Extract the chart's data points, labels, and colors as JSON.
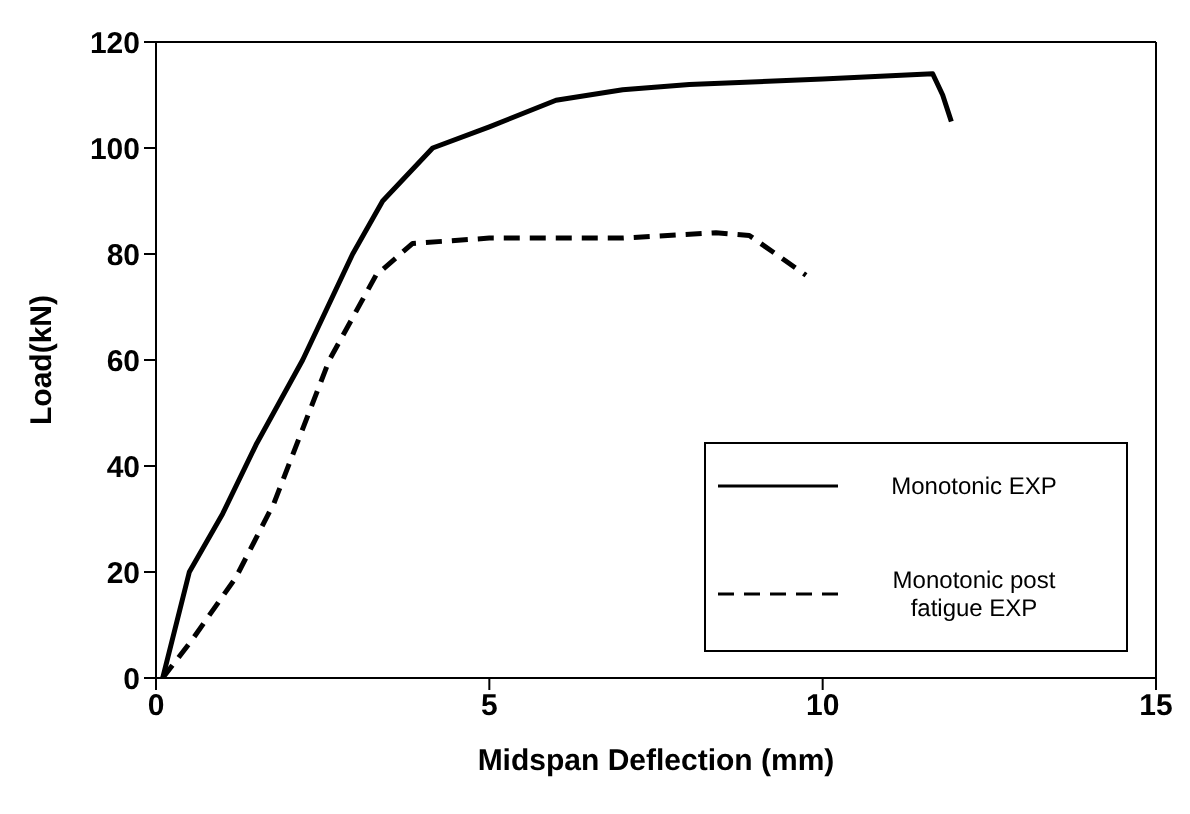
{
  "chart_data": {
    "type": "line",
    "xlabel": "Midspan Deflection (mm)",
    "ylabel": "Load(kN)",
    "xlim": [
      0,
      15
    ],
    "xticks": [
      0,
      5,
      10,
      15
    ],
    "ylim": [
      0,
      120
    ],
    "yticks": [
      0,
      20,
      40,
      60,
      80,
      100,
      120
    ],
    "legend": "bottom right",
    "marker": "none",
    "series": [
      {
        "name": "Monotonic EXP",
        "color": "#000000",
        "line_style": "solid",
        "x": [
          0.1,
          0.5,
          1,
          1.5,
          2.2,
          2.95,
          3.4,
          4.15,
          5,
          6,
          7,
          8,
          10,
          11.65,
          11.8,
          11.93
        ],
        "values": [
          0,
          20,
          31,
          44,
          60,
          80,
          90,
          100,
          104,
          109,
          111,
          112,
          113,
          114,
          110,
          105
        ]
      },
      {
        "name": "Monotonic post fatigue EXP",
        "color": "#000000",
        "line_style": "dashed",
        "x": [
          0.1,
          0.53,
          1.2,
          1.77,
          2.6,
          3.3,
          3.85,
          5,
          7,
          8.4,
          8.9,
          9.75
        ],
        "values": [
          0,
          7,
          19,
          33,
          60,
          76,
          82,
          83,
          83,
          84,
          83.5,
          76
        ]
      }
    ]
  }
}
